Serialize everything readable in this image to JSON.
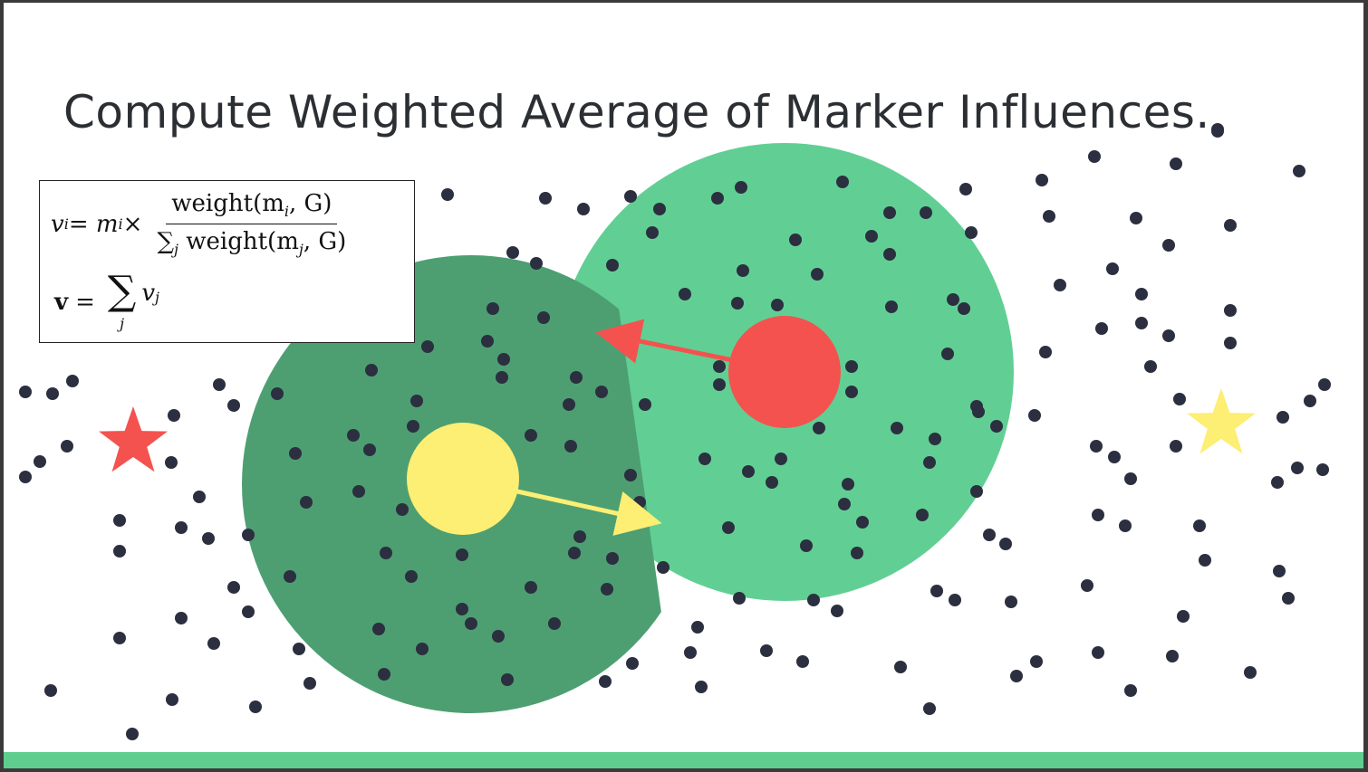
{
  "slide": {
    "title": "Compute Weighted Average of Marker Influences."
  },
  "formula": {
    "line1_lhs": "v",
    "line1_lhs_sub": "i",
    "line1_eq": " = m",
    "line1_m_sub": "i",
    "line1_times": " ×",
    "line1_num": "weight(m",
    "line1_num_sub": "i",
    "line1_num_tail": ", G)",
    "line1_den_sum": "∑",
    "line1_den_sum_sub": "j",
    "line1_den": " weight(m",
    "line1_den_sub": "j",
    "line1_den_tail": ", G)",
    "line2_lhs": "v",
    "line2_eq": "=",
    "line2_sum": "∑",
    "line2_sum_sub": "j",
    "line2_rhs": "v",
    "line2_rhs_sub": "j"
  },
  "colors": {
    "dark_green_region": "#4d9f72",
    "light_green_region": "#61cf94",
    "red_marker": "#f4524f",
    "yellow_marker": "#fdee74",
    "dots": "#2b2f3f",
    "accent_bar": "#5fcd8e"
  },
  "icons": {
    "red_star": "star-icon",
    "yellow_star": "star-icon"
  }
}
